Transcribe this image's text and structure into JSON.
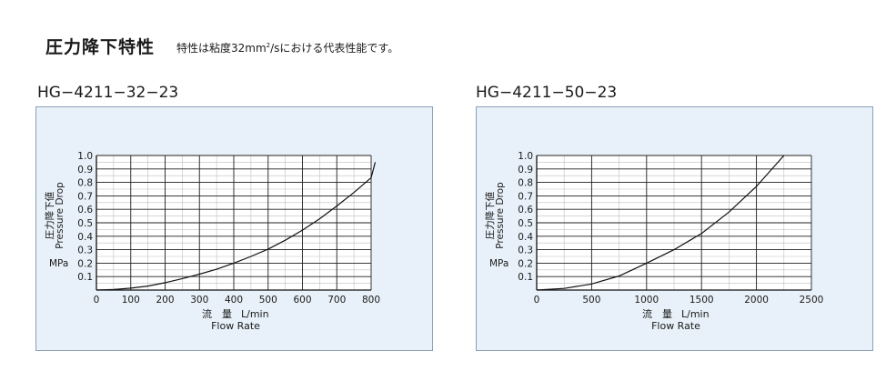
{
  "header": {
    "title": "圧力降下特性",
    "note_before": "特性は粘度32mm",
    "note_sup": "2",
    "note_after": "/sにおける代表性能です。"
  },
  "chart_data": [
    {
      "type": "line",
      "title": "HG−4211−32−23",
      "xlabel_jp": "流　量",
      "xlabel_unit": "L/min",
      "xlabel_en": "Flow Rate",
      "ylabel_jp": "圧力降下値",
      "ylabel_en": "Pressure Drop",
      "ylabel_unit": "MPa",
      "xlim": [
        0,
        800
      ],
      "ylim": [
        0,
        1.0
      ],
      "xticks": [
        0,
        100,
        200,
        300,
        400,
        500,
        600,
        700,
        800
      ],
      "yticks": [
        0.1,
        0.2,
        0.3,
        0.4,
        0.5,
        0.6,
        0.7,
        0.8,
        0.9,
        1.0
      ],
      "x_minor_step": 50,
      "y_minor_step": 0.05,
      "grid": true,
      "series": [
        {
          "x": [
            0,
            50,
            100,
            150,
            200,
            250,
            300,
            350,
            400,
            450,
            500,
            550,
            600,
            650,
            700,
            750,
            800
          ],
          "y": [
            0.0,
            0.004,
            0.014,
            0.03,
            0.055,
            0.085,
            0.118,
            0.155,
            0.2,
            0.25,
            0.305,
            0.37,
            0.445,
            0.53,
            0.625,
            0.725,
            0.835
          ]
        }
      ],
      "series_extra": {
        "x": [
          812
        ],
        "y": [
          0.95
        ]
      }
    },
    {
      "type": "line",
      "title": "HG−4211−50−23",
      "xlabel_jp": "流　量",
      "xlabel_unit": "L/min",
      "xlabel_en": "Flow Rate",
      "ylabel_jp": "圧力降下値",
      "ylabel_en": "Pressure Drop",
      "ylabel_unit": "MPa",
      "xlim": [
        0,
        2500
      ],
      "ylim": [
        0,
        1.0
      ],
      "xticks": [
        0,
        500,
        1000,
        1500,
        2000,
        2500
      ],
      "yticks": [
        0.1,
        0.2,
        0.3,
        0.4,
        0.5,
        0.6,
        0.7,
        0.8,
        0.9,
        1.0
      ],
      "x_minor_step": 250,
      "y_minor_step": 0.05,
      "grid": true,
      "series": [
        {
          "x": [
            0,
            250,
            500,
            750,
            1000,
            1250,
            1500,
            1750,
            2000,
            2250
          ],
          "y": [
            0.0,
            0.012,
            0.045,
            0.105,
            0.2,
            0.3,
            0.42,
            0.58,
            0.77,
            1.0
          ]
        }
      ]
    }
  ]
}
